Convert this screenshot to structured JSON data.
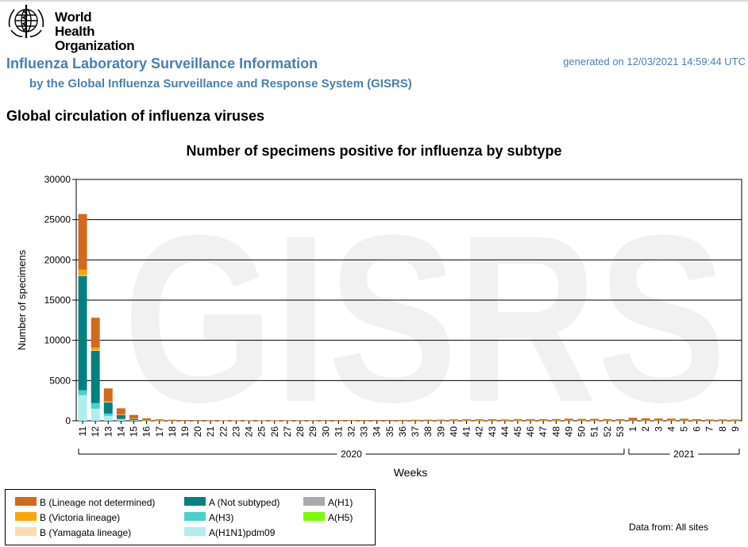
{
  "header": {
    "logo_text_line1": "World Health",
    "logo_text_line2": "Organization",
    "title": "Influenza Laboratory Surveillance Information",
    "subtitle": "by the Global Influenza Surveillance and Response System (GISRS)",
    "generated": "generated on 12/03/2021 14:59:44 UTC"
  },
  "section_title": "Global circulation of influenza viruses",
  "watermark": "GISRS",
  "data_source": "Data from: All sites",
  "legend": [
    {
      "label": "B (Lineage not determined)",
      "color": "#d2691e"
    },
    {
      "label": "B (Victoria lineage)",
      "color": "#ffa500"
    },
    {
      "label": "B (Yamagata lineage)",
      "color": "#fadcb0"
    },
    {
      "label": "A (Not subtyped)",
      "color": "#008080"
    },
    {
      "label": "A(H3)",
      "color": "#48d1cc"
    },
    {
      "label": "A(H1N1)pdm09",
      "color": "#afeeee"
    },
    {
      "label": "A(H1)",
      "color": "#a9a9a9"
    },
    {
      "label": "A(H5)",
      "color": "#7cfc00"
    }
  ],
  "chart_data": {
    "type": "bar",
    "stacked": true,
    "title": "Number of specimens positive for influenza by subtype",
    "xlabel": "Weeks",
    "ylabel": "Number of specimens",
    "ylim": [
      0,
      30000
    ],
    "yticks": [
      0,
      5000,
      10000,
      15000,
      20000,
      25000,
      30000
    ],
    "grid": true,
    "year_groups": [
      {
        "label": "2020",
        "start_week": "11",
        "end_week": "53"
      },
      {
        "label": "2021",
        "start_week": "1",
        "end_week": "9"
      }
    ],
    "categories": [
      "11",
      "12",
      "13",
      "14",
      "15",
      "16",
      "17",
      "18",
      "19",
      "20",
      "21",
      "22",
      "23",
      "24",
      "25",
      "26",
      "27",
      "28",
      "29",
      "30",
      "31",
      "32",
      "33",
      "34",
      "35",
      "36",
      "37",
      "38",
      "39",
      "40",
      "41",
      "42",
      "43",
      "44",
      "45",
      "46",
      "47",
      "48",
      "49",
      "50",
      "51",
      "52",
      "53",
      "1",
      "2",
      "3",
      "4",
      "5",
      "6",
      "7",
      "8",
      "9"
    ],
    "series": [
      {
        "name": "A(H1N1)pdm09",
        "color": "#afeeee",
        "values": [
          3200,
          1500,
          600,
          150,
          60,
          20,
          10,
          5,
          5,
          5,
          5,
          5,
          5,
          5,
          5,
          5,
          5,
          5,
          5,
          5,
          5,
          5,
          5,
          5,
          5,
          5,
          5,
          5,
          5,
          5,
          5,
          5,
          5,
          5,
          5,
          5,
          5,
          5,
          5,
          5,
          5,
          5,
          5,
          5,
          5,
          5,
          5,
          5,
          5,
          5,
          5,
          5
        ]
      },
      {
        "name": "A(H3)",
        "color": "#48d1cc",
        "values": [
          600,
          700,
          300,
          100,
          40,
          15,
          10,
          5,
          5,
          5,
          5,
          5,
          5,
          5,
          5,
          5,
          5,
          5,
          5,
          5,
          5,
          5,
          5,
          5,
          5,
          5,
          5,
          5,
          5,
          5,
          5,
          5,
          5,
          5,
          5,
          5,
          5,
          5,
          5,
          5,
          5,
          5,
          5,
          5,
          5,
          5,
          5,
          5,
          5,
          5,
          5,
          5
        ]
      },
      {
        "name": "A (Not subtyped)",
        "color": "#008080",
        "values": [
          14200,
          6500,
          1400,
          500,
          150,
          60,
          30,
          20,
          15,
          15,
          15,
          10,
          10,
          10,
          10,
          10,
          10,
          10,
          10,
          15,
          15,
          15,
          15,
          15,
          15,
          20,
          20,
          25,
          30,
          40,
          40,
          40,
          40,
          30,
          40,
          40,
          40,
          40,
          50,
          40,
          50,
          40,
          40,
          60,
          50,
          50,
          40,
          40,
          30,
          30,
          30,
          30
        ]
      },
      {
        "name": "A(H1)",
        "color": "#a9a9a9",
        "values": [
          0,
          0,
          0,
          0,
          0,
          0,
          0,
          0,
          0,
          0,
          0,
          0,
          0,
          0,
          0,
          0,
          0,
          0,
          0,
          0,
          0,
          0,
          0,
          0,
          0,
          0,
          0,
          0,
          0,
          0,
          0,
          0,
          0,
          0,
          0,
          0,
          0,
          0,
          0,
          0,
          0,
          0,
          0,
          0,
          0,
          0,
          0,
          0,
          0,
          0,
          0,
          0
        ]
      },
      {
        "name": "A(H5)",
        "color": "#7cfc00",
        "values": [
          0,
          0,
          0,
          0,
          0,
          0,
          0,
          0,
          0,
          0,
          0,
          0,
          0,
          0,
          0,
          0,
          0,
          0,
          0,
          0,
          0,
          0,
          0,
          0,
          0,
          0,
          0,
          0,
          0,
          0,
          0,
          0,
          0,
          0,
          0,
          0,
          0,
          0,
          0,
          0,
          0,
          0,
          0,
          0,
          0,
          0,
          0,
          0,
          0,
          0,
          0,
          0
        ]
      },
      {
        "name": "B (Yamagata lineage)",
        "color": "#fadcb0",
        "values": [
          100,
          50,
          20,
          10,
          5,
          0,
          0,
          0,
          0,
          0,
          0,
          0,
          0,
          0,
          0,
          0,
          0,
          0,
          0,
          0,
          0,
          0,
          0,
          0,
          0,
          0,
          0,
          0,
          0,
          0,
          0,
          0,
          0,
          0,
          0,
          0,
          0,
          0,
          0,
          0,
          0,
          0,
          0,
          0,
          0,
          0,
          0,
          0,
          0,
          0,
          0,
          0
        ]
      },
      {
        "name": "B (Victoria lineage)",
        "color": "#ffa500",
        "values": [
          700,
          350,
          100,
          40,
          20,
          10,
          5,
          5,
          5,
          5,
          5,
          5,
          5,
          5,
          5,
          5,
          5,
          5,
          5,
          5,
          5,
          5,
          5,
          5,
          5,
          5,
          5,
          5,
          5,
          5,
          5,
          5,
          5,
          5,
          5,
          5,
          5,
          5,
          5,
          5,
          5,
          5,
          5,
          5,
          5,
          5,
          5,
          5,
          5,
          5,
          5,
          5
        ]
      },
      {
        "name": "B (Lineage not determined)",
        "color": "#d2691e",
        "values": [
          6900,
          3700,
          1600,
          750,
          450,
          200,
          130,
          90,
          70,
          60,
          50,
          40,
          40,
          40,
          40,
          40,
          50,
          50,
          50,
          60,
          60,
          60,
          70,
          70,
          80,
          80,
          90,
          100,
          100,
          120,
          130,
          130,
          140,
          120,
          140,
          150,
          150,
          160,
          190,
          170,
          180,
          160,
          150,
          300,
          240,
          220,
          210,
          200,
          150,
          120,
          130,
          120
        ]
      }
    ]
  }
}
